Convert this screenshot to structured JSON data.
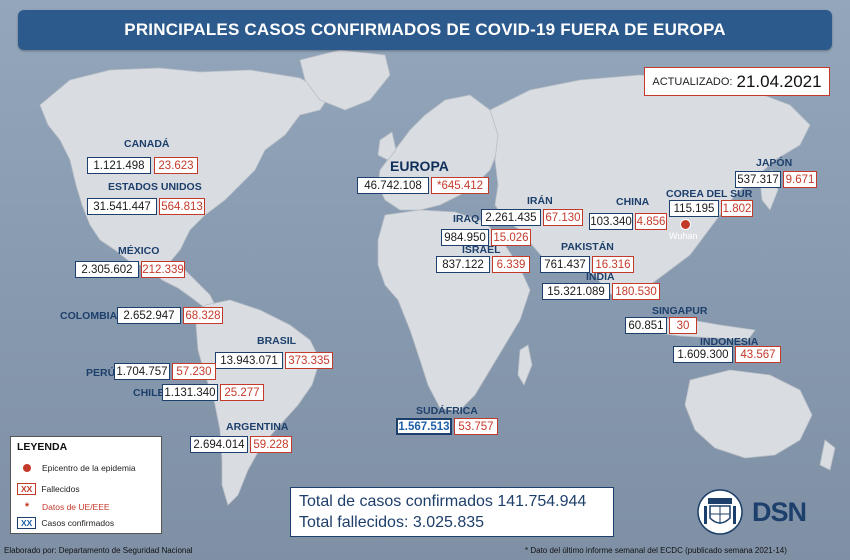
{
  "title": "PRINCIPALES CASOS CONFIRMADOS DE COVID-19 FUERA DE EUROPA",
  "updated": {
    "label": "ACTUALIZADO:",
    "date": "21.04.2021"
  },
  "regions": {
    "canada": {
      "name": "CANADÁ",
      "cases": "1.121.498",
      "deaths": "23.623"
    },
    "usa": {
      "name": "ESTADOS UNIDOS",
      "cases": "31.541.447",
      "deaths": "564.813"
    },
    "mexico": {
      "name": "MÉXICO",
      "cases": "2.305.602",
      "deaths": "212.339"
    },
    "colombia": {
      "name": "COLOMBIA",
      "cases": "2.652.947",
      "deaths": "68.328"
    },
    "brasil": {
      "name": "BRASIL",
      "cases": "13.943.071",
      "deaths": "373.335"
    },
    "peru": {
      "name": "PERÚ",
      "cases": "1.704.757",
      "deaths": "57.230"
    },
    "chile": {
      "name": "CHILE",
      "cases": "1.131.340",
      "deaths": "25.277"
    },
    "argentina": {
      "name": "ARGENTINA",
      "cases": "2.694.014",
      "deaths": "59.228"
    },
    "europa": {
      "name": "EUROPA",
      "cases": "46.742.108",
      "deaths": "*645.412"
    },
    "iraq": {
      "name": "IRAQ",
      "cases": "984.950",
      "deaths": "15.026"
    },
    "iran": {
      "name": "IRÁN",
      "cases": "2.261.435",
      "deaths": "67.130"
    },
    "israel": {
      "name": "ISRAEL",
      "cases": "837.122",
      "deaths": "6.339"
    },
    "pakistan": {
      "name": "PAKISTÁN",
      "cases": "761.437",
      "deaths": "16.316"
    },
    "india": {
      "name": "INDIA",
      "cases": "15.321.089",
      "deaths": "180.530"
    },
    "china": {
      "name": "CHINA",
      "cases": "103.340",
      "deaths": "4.856"
    },
    "corea": {
      "name": "COREA DEL SUR",
      "cases": "115.195",
      "deaths": "1.802"
    },
    "japon": {
      "name": "JAPÓN",
      "cases": "537.317",
      "deaths": "9.671"
    },
    "singapur": {
      "name": "SINGAPUR",
      "cases": "60.851",
      "deaths": "30"
    },
    "indonesia": {
      "name": "INDONESIA",
      "cases": "1.609.300",
      "deaths": "43.567"
    },
    "sudafrica": {
      "name": "SUDÁFRICA",
      "cases": "1.567.513",
      "deaths": "53.757"
    }
  },
  "wuhan_label": "Wuhan",
  "legend": {
    "title": "LEYENDA",
    "epicenter": "Epicentro de la epidemia",
    "deaths_symbol": "XX",
    "deaths": "Fallecidos",
    "star_symbol": "*",
    "eu_data": "Datos de UE/EEE",
    "cases_symbol": "XX",
    "cases": "Casos confirmados"
  },
  "totals": {
    "cases_label": "Total de casos confirmados",
    "cases": "141.754.944",
    "deaths_label": "Total fallecidos:",
    "deaths": "3.025.835"
  },
  "logo_text": "DSN",
  "footer_left": "Elaborado por: Departamento de Seguridad Nacional",
  "footer_right": "* Dato del último informe semanal del ECDC (publicado semana 2021-14)",
  "colors": {
    "header": "#2c5a8c",
    "deaths": "#c43a2a",
    "cases": "#1d3f6b",
    "land": "#d7dbe0",
    "sea": "#8fa1b6"
  }
}
